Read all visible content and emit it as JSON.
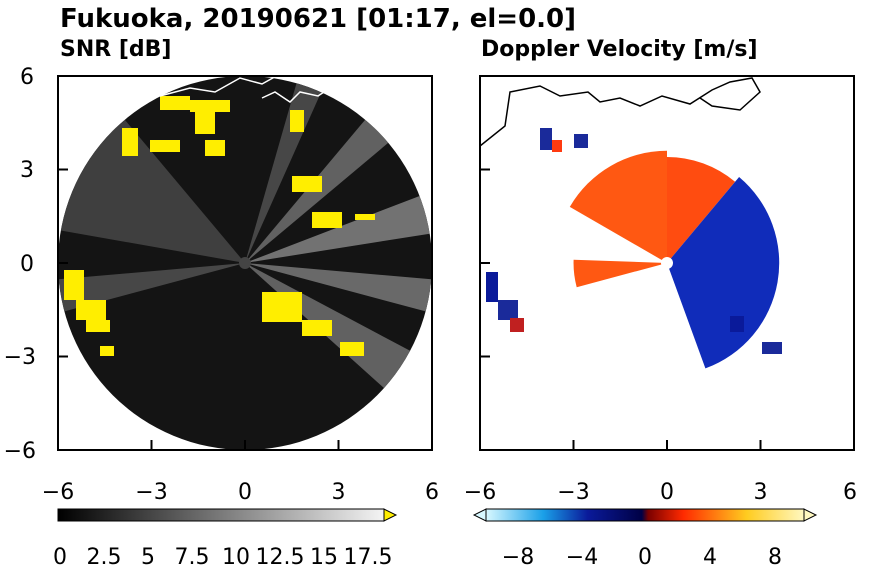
{
  "figure": {
    "title": "Fukuoka, 20190621 [01:17, el=0.0]"
  },
  "chart_data": [
    {
      "type": "heatmap",
      "title": "SNR [dB]",
      "xlim": [
        -6,
        6
      ],
      "ylim": [
        -6,
        6
      ],
      "xticks": [
        "−6",
        "−3",
        "0",
        "3",
        "6"
      ],
      "yticks": [
        "6",
        "3",
        "0",
        "−3",
        "−6"
      ],
      "colorbar": {
        "range": [
          0,
          18.5
        ],
        "labels": [
          "0",
          "2.5",
          "5",
          "7.5",
          "10",
          "12.5",
          "15",
          "17.5"
        ],
        "extend": "max",
        "colors": {
          "low": "#000000",
          "high": "#ffffff",
          "over": "#ffee00"
        }
      },
      "radar_range": 6,
      "rays": [
        {
          "azimuth_deg": 20,
          "width_deg": 8,
          "level": 0.3
        },
        {
          "azimuth_deg": 45,
          "width_deg": 10,
          "level": 0.45
        },
        {
          "azimuth_deg": 75,
          "width_deg": 12,
          "level": 0.55
        },
        {
          "azimuth_deg": 100,
          "width_deg": 10,
          "level": 0.5
        },
        {
          "azimuth_deg": 125,
          "width_deg": 14,
          "level": 0.45
        },
        {
          "azimuth_deg": 260,
          "width_deg": 10,
          "level": 0.3
        },
        {
          "azimuth_deg": 300,
          "width_deg": 40,
          "level": 0.25
        }
      ]
    },
    {
      "type": "heatmap",
      "title": "Doppler Velocity [m/s]",
      "xlim": [
        -6,
        6
      ],
      "ylim": [
        -6,
        6
      ],
      "xticks": [
        "−6",
        "−3",
        "0",
        "3",
        "6"
      ],
      "yticks": [],
      "colorbar": {
        "range": [
          -10,
          10
        ],
        "labels": [
          "−8",
          "−4",
          "0",
          "4",
          "8"
        ],
        "extend": "both",
        "colors": {
          "negative": "#0a1a9a",
          "zero": "#ffffff",
          "positive": "#ff3a10"
        }
      },
      "sectors": [
        {
          "azimuth_from_deg": 300,
          "azimuth_to_deg": 360,
          "max_range": 3.6,
          "velocity": 4
        },
        {
          "azimuth_from_deg": 0,
          "azimuth_to_deg": 40,
          "max_range": 3.4,
          "velocity": 3
        },
        {
          "azimuth_from_deg": 40,
          "azimuth_to_deg": 160,
          "max_range": 3.6,
          "velocity": -6
        },
        {
          "azimuth_from_deg": 255,
          "azimuth_to_deg": 272,
          "max_range": 3.0,
          "velocity": 4
        }
      ]
    }
  ]
}
